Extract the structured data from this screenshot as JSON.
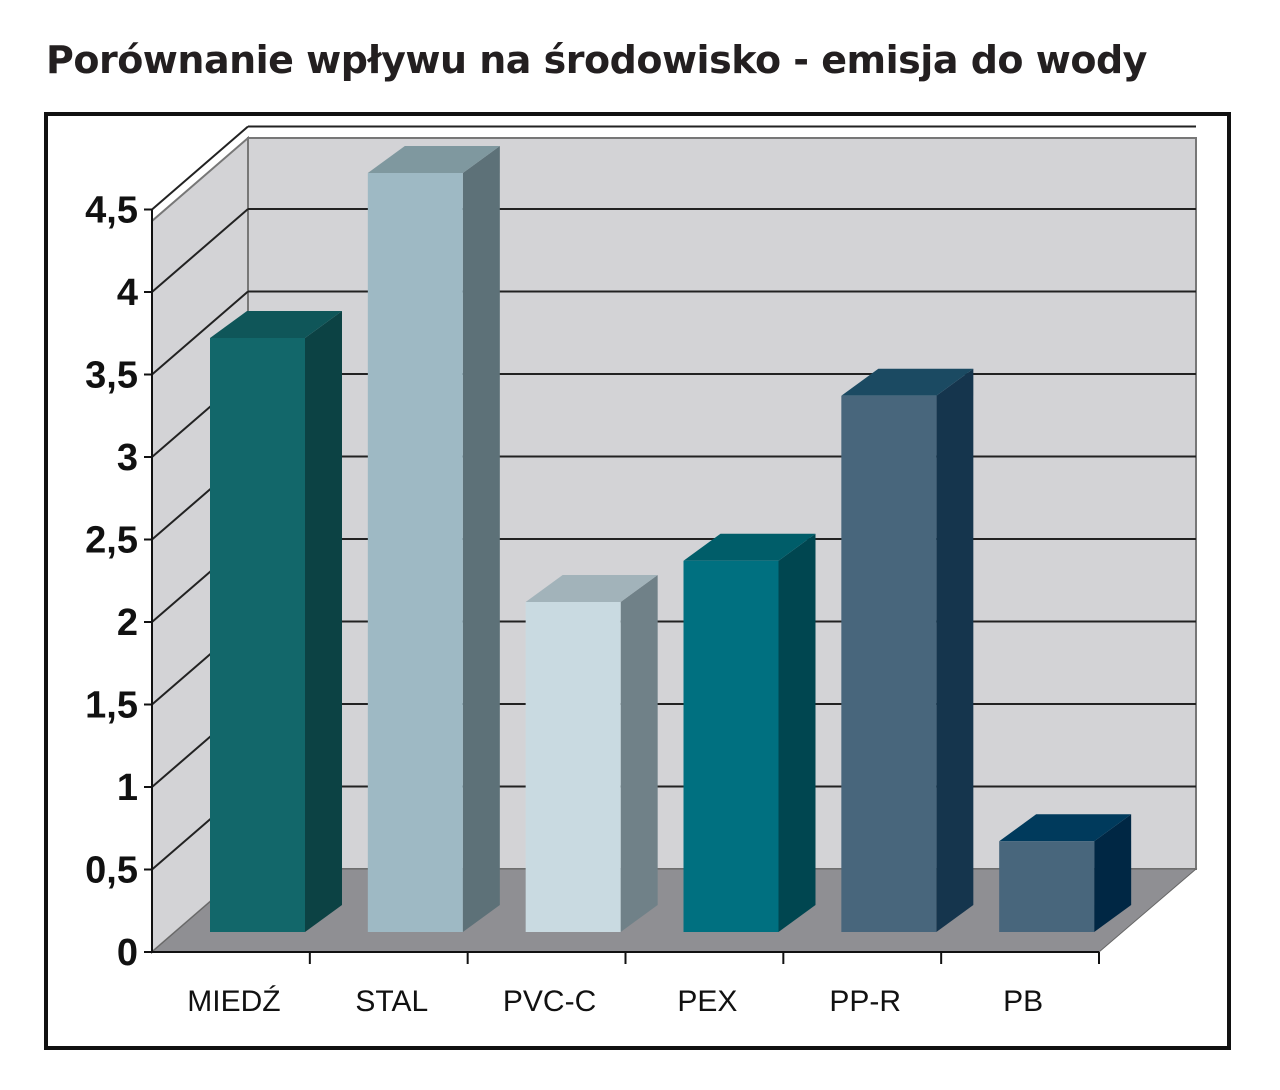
{
  "chart_data": {
    "type": "bar",
    "title": "Porównanie wpływu na środowisko - emisja do wody",
    "categories": [
      "MIEDŹ",
      "STAL",
      "PVC-C",
      "PEX",
      "PP-R",
      "PB"
    ],
    "values": [
      3.6,
      4.6,
      2.0,
      2.25,
      3.25,
      0.55
    ],
    "ylim": [
      0,
      4.5
    ],
    "yticks": [
      "0",
      "0,5",
      "1",
      "1,5",
      "2",
      "2,5",
      "3",
      "3,5",
      "4",
      "4,5"
    ],
    "ytick_values": [
      0,
      0.5,
      1,
      1.5,
      2,
      2.5,
      3,
      3.5,
      4,
      4.5
    ],
    "grid": true,
    "style": "3d-column",
    "bar_colors": [
      {
        "front": "#12676a",
        "side": "#0c4244",
        "top": "#0f5659"
      },
      {
        "front": "#9eb9c4",
        "side": "#5d7178",
        "top": "#7f989f"
      },
      {
        "front": "#c9dae1",
        "side": "#708188",
        "top": "#a2b3ba"
      },
      {
        "front": "#007080",
        "side": "#004650",
        "top": "#005d69"
      },
      {
        "front": "#48667c",
        "side": "#15354d",
        "top": "#1b4a62"
      },
      {
        "front": "#48667c",
        "side": "#002744",
        "top": "#003a5c"
      }
    ],
    "wall_color": "#d3d3d6",
    "floor_color": "#8f8f93",
    "gridline_color": "#222222"
  }
}
